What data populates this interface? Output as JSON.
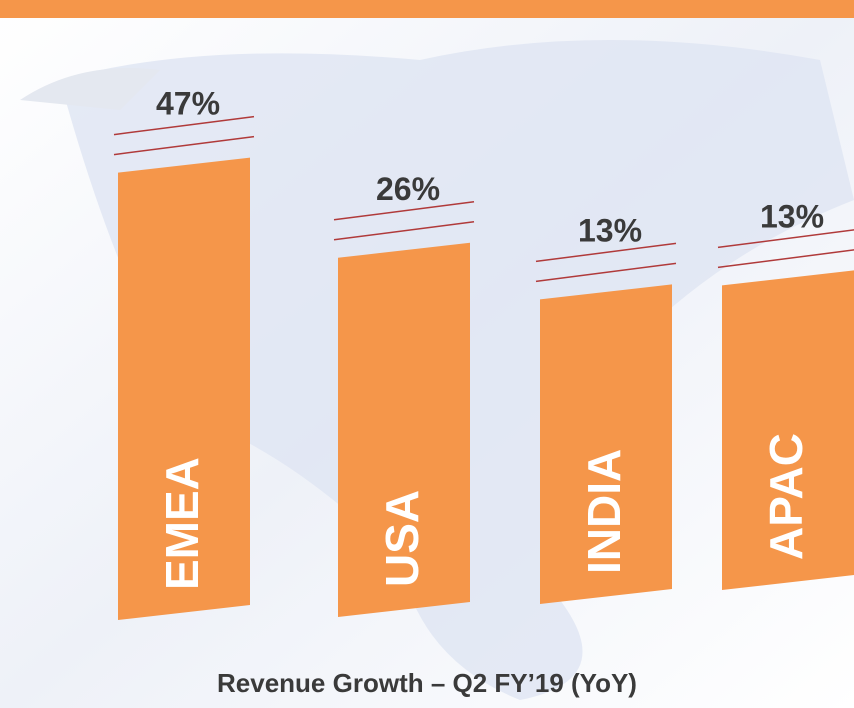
{
  "chart_data": {
    "type": "bar",
    "title": "Revenue Growth – Q2 FY’19 (YoY)",
    "categories": [
      "EMEA",
      "USA",
      "INDIA",
      "APAC"
    ],
    "values": [
      47,
      26,
      13,
      13
    ],
    "value_labels": [
      "47%",
      "26%",
      "13%",
      "13%"
    ],
    "color": "#f5964a"
  }
}
